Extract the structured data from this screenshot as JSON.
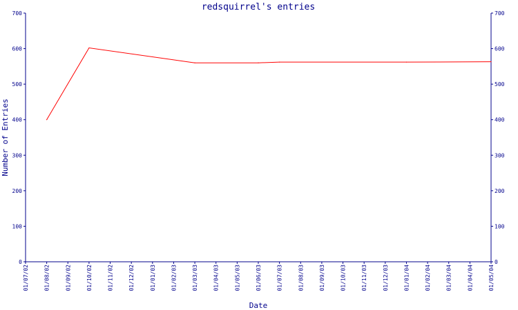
{
  "chart_data": {
    "type": "line",
    "title": "redsquirrel's entries",
    "xlabel": "Date",
    "ylabel": "Number of Entries",
    "ylim": [
      0,
      700
    ],
    "y_ticks": [
      0,
      100,
      200,
      300,
      400,
      500,
      600,
      700
    ],
    "x_tick_labels": [
      "01/07/02",
      "01/08/02",
      "01/09/02",
      "01/10/02",
      "01/11/02",
      "01/12/02",
      "01/01/03",
      "01/02/03",
      "01/03/03",
      "01/04/03",
      "01/05/03",
      "01/06/03",
      "01/07/03",
      "01/08/03",
      "01/09/03",
      "01/10/03",
      "01/11/03",
      "01/12/03",
      "01/01/04",
      "01/02/04",
      "01/03/04",
      "01/04/04",
      "01/05/04"
    ],
    "grid": false,
    "colors": {
      "axis": "#00008b",
      "series": "#ff0000"
    },
    "series": [
      {
        "x": [
          "01/08/02",
          "01/10/02",
          "01/03/03",
          "01/06/03",
          "01/07/03",
          "01/01/04",
          "01/05/04"
        ],
        "values": [
          400,
          602,
          560,
          560,
          562,
          562,
          563
        ]
      }
    ]
  }
}
